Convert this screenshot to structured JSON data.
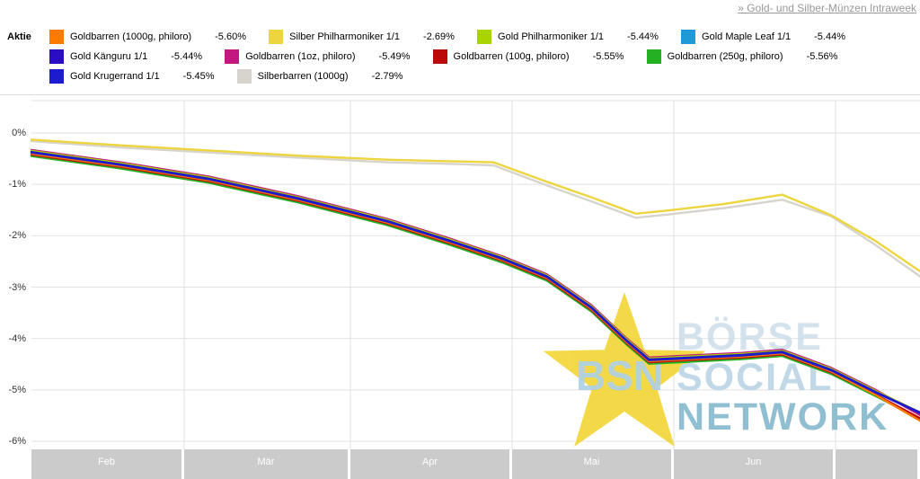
{
  "header": {
    "link_label": "» Gold- und Silber-Münzen Intraweek"
  },
  "legend": {
    "label": "Aktie",
    "row_sizes": [
      4,
      4,
      2
    ]
  },
  "watermark": {
    "bsn": "BSN",
    "words": [
      "BÖRSE",
      "SOCIAL",
      "NETWORK"
    ]
  },
  "chart_data": {
    "type": "line",
    "title": "Gold- und Silber-Münzen Intraweek",
    "xlabel": "",
    "ylabel": "",
    "ylim": [
      -6.5,
      0.6
    ],
    "grid": true,
    "legend_position": "top",
    "yticks": [
      "0%",
      "-1%",
      "-2%",
      "-3%",
      "-4%",
      "-5%",
      "-6%"
    ],
    "ytick_values": [
      0,
      -1,
      -2,
      -3,
      -4,
      -5,
      -6
    ],
    "x_axis_months": [
      "Feb",
      "Mär",
      "Apr",
      "Mai",
      "Jun"
    ],
    "draw_order": [
      9,
      1,
      7,
      6,
      0,
      5,
      3,
      2,
      4,
      8
    ],
    "series": [
      {
        "name": "Goldbarren (1000g, philoro)",
        "change": "-5.60%",
        "color": "#ff7a00",
        "points": [
          [
            0,
            -0.4
          ],
          [
            0.1,
            -0.64
          ],
          [
            0.2,
            -0.92
          ],
          [
            0.3,
            -1.3
          ],
          [
            0.4,
            -1.74
          ],
          [
            0.47,
            -2.12
          ],
          [
            0.53,
            -2.47
          ],
          [
            0.58,
            -2.82
          ],
          [
            0.63,
            -3.42
          ],
          [
            0.67,
            -4.07
          ],
          [
            0.695,
            -4.44
          ],
          [
            0.73,
            -4.41
          ],
          [
            0.8,
            -4.35
          ],
          [
            0.845,
            -4.29
          ],
          [
            0.9,
            -4.64
          ],
          [
            0.95,
            -5.1
          ],
          [
            1.0,
            -5.6
          ]
        ]
      },
      {
        "name": "Silber Philharmoniker 1/1",
        "change": "-2.69%",
        "color": "#ecd53e",
        "points": [
          [
            0,
            -0.13
          ],
          [
            0.1,
            -0.24
          ],
          [
            0.2,
            -0.34
          ],
          [
            0.3,
            -0.44
          ],
          [
            0.4,
            -0.52
          ],
          [
            0.47,
            -0.55
          ],
          [
            0.52,
            -0.57
          ],
          [
            0.58,
            -0.95
          ],
          [
            0.63,
            -1.25
          ],
          [
            0.68,
            -1.57
          ],
          [
            0.72,
            -1.5
          ],
          [
            0.78,
            -1.38
          ],
          [
            0.845,
            -1.2
          ],
          [
            0.9,
            -1.6
          ],
          [
            0.95,
            -2.1
          ],
          [
            1.0,
            -2.69
          ]
        ]
      },
      {
        "name": "Gold Philharmoniker 1/1",
        "change": "-5.44%",
        "color": "#a8d400",
        "points": [
          [
            0,
            -0.35
          ],
          [
            0.1,
            -0.59
          ],
          [
            0.2,
            -0.87
          ],
          [
            0.3,
            -1.25
          ],
          [
            0.4,
            -1.69
          ],
          [
            0.47,
            -2.07
          ],
          [
            0.53,
            -2.42
          ],
          [
            0.58,
            -2.77
          ],
          [
            0.63,
            -3.37
          ],
          [
            0.67,
            -4.02
          ],
          [
            0.695,
            -4.39
          ],
          [
            0.73,
            -4.36
          ],
          [
            0.8,
            -4.3
          ],
          [
            0.845,
            -4.24
          ],
          [
            0.9,
            -4.59
          ],
          [
            0.95,
            -5.02
          ],
          [
            1.0,
            -5.44
          ]
        ]
      },
      {
        "name": "Gold Maple Leaf 1/1",
        "change": "-5.44%",
        "color": "#1e9ad6",
        "points": [
          [
            0,
            -0.36
          ],
          [
            0.1,
            -0.6
          ],
          [
            0.2,
            -0.88
          ],
          [
            0.3,
            -1.26
          ],
          [
            0.4,
            -1.7
          ],
          [
            0.47,
            -2.08
          ],
          [
            0.53,
            -2.43
          ],
          [
            0.58,
            -2.78
          ],
          [
            0.63,
            -3.38
          ],
          [
            0.67,
            -4.03
          ],
          [
            0.695,
            -4.4
          ],
          [
            0.73,
            -4.37
          ],
          [
            0.8,
            -4.31
          ],
          [
            0.845,
            -4.25
          ],
          [
            0.9,
            -4.6
          ],
          [
            0.95,
            -5.03
          ],
          [
            1.0,
            -5.44
          ]
        ]
      },
      {
        "name": "Gold Känguru 1/1",
        "change": "-5.44%",
        "color": "#2a0cc4",
        "points": [
          [
            0,
            -0.37
          ],
          [
            0.1,
            -0.61
          ],
          [
            0.2,
            -0.89
          ],
          [
            0.3,
            -1.27
          ],
          [
            0.4,
            -1.71
          ],
          [
            0.47,
            -2.09
          ],
          [
            0.53,
            -2.44
          ],
          [
            0.58,
            -2.79
          ],
          [
            0.63,
            -3.39
          ],
          [
            0.67,
            -4.04
          ],
          [
            0.695,
            -4.41
          ],
          [
            0.73,
            -4.38
          ],
          [
            0.8,
            -4.32
          ],
          [
            0.845,
            -4.26
          ],
          [
            0.9,
            -4.61
          ],
          [
            0.95,
            -5.04
          ],
          [
            1.0,
            -5.44
          ]
        ]
      },
      {
        "name": "Goldbarren (1oz, philoro)",
        "change": "-5.49%",
        "color": "#c2187f",
        "points": [
          [
            0,
            -0.33
          ],
          [
            0.1,
            -0.57
          ],
          [
            0.2,
            -0.85
          ],
          [
            0.3,
            -1.23
          ],
          [
            0.4,
            -1.67
          ],
          [
            0.47,
            -2.05
          ],
          [
            0.53,
            -2.4
          ],
          [
            0.58,
            -2.75
          ],
          [
            0.63,
            -3.35
          ],
          [
            0.67,
            -4.0
          ],
          [
            0.695,
            -4.37
          ],
          [
            0.73,
            -4.34
          ],
          [
            0.8,
            -4.28
          ],
          [
            0.845,
            -4.22
          ],
          [
            0.9,
            -4.57
          ],
          [
            0.95,
            -5.0
          ],
          [
            1.0,
            -5.49
          ]
        ]
      },
      {
        "name": "Goldbarren (100g, philoro)",
        "change": "-5.55%",
        "color": "#bb0a0a",
        "points": [
          [
            0,
            -0.42
          ],
          [
            0.1,
            -0.66
          ],
          [
            0.2,
            -0.94
          ],
          [
            0.3,
            -1.32
          ],
          [
            0.4,
            -1.76
          ],
          [
            0.47,
            -2.14
          ],
          [
            0.53,
            -2.49
          ],
          [
            0.58,
            -2.84
          ],
          [
            0.63,
            -3.44
          ],
          [
            0.67,
            -4.09
          ],
          [
            0.695,
            -4.46
          ],
          [
            0.73,
            -4.43
          ],
          [
            0.8,
            -4.37
          ],
          [
            0.845,
            -4.31
          ],
          [
            0.9,
            -4.66
          ],
          [
            0.95,
            -5.09
          ],
          [
            1.0,
            -5.55
          ]
        ]
      },
      {
        "name": "Goldbarren (250g, philoro)",
        "change": "-5.56%",
        "color": "#23b123",
        "points": [
          [
            0,
            -0.45
          ],
          [
            0.1,
            -0.69
          ],
          [
            0.2,
            -0.97
          ],
          [
            0.3,
            -1.35
          ],
          [
            0.4,
            -1.79
          ],
          [
            0.47,
            -2.17
          ],
          [
            0.53,
            -2.52
          ],
          [
            0.58,
            -2.87
          ],
          [
            0.63,
            -3.47
          ],
          [
            0.67,
            -4.12
          ],
          [
            0.695,
            -4.49
          ],
          [
            0.73,
            -4.46
          ],
          [
            0.8,
            -4.4
          ],
          [
            0.845,
            -4.34
          ],
          [
            0.9,
            -4.69
          ],
          [
            0.95,
            -5.12
          ],
          [
            1.0,
            -5.56
          ]
        ]
      },
      {
        "name": "Gold Krugerrand 1/1",
        "change": "-5.45%",
        "color": "#1d1bd0",
        "points": [
          [
            0,
            -0.38
          ],
          [
            0.1,
            -0.62
          ],
          [
            0.2,
            -0.9
          ],
          [
            0.3,
            -1.28
          ],
          [
            0.4,
            -1.72
          ],
          [
            0.47,
            -2.1
          ],
          [
            0.53,
            -2.45
          ],
          [
            0.58,
            -2.8
          ],
          [
            0.63,
            -3.4
          ],
          [
            0.67,
            -4.05
          ],
          [
            0.695,
            -4.42
          ],
          [
            0.73,
            -4.39
          ],
          [
            0.8,
            -4.33
          ],
          [
            0.845,
            -4.27
          ],
          [
            0.9,
            -4.62
          ],
          [
            0.95,
            -5.05
          ],
          [
            1.0,
            -5.45
          ]
        ]
      },
      {
        "name": "Silberbarren (1000g)",
        "change": "-2.79%",
        "color": "#d6d4cc",
        "points": [
          [
            0,
            -0.16
          ],
          [
            0.1,
            -0.28
          ],
          [
            0.2,
            -0.38
          ],
          [
            0.3,
            -0.48
          ],
          [
            0.4,
            -0.57
          ],
          [
            0.47,
            -0.6
          ],
          [
            0.52,
            -0.63
          ],
          [
            0.58,
            -1.02
          ],
          [
            0.63,
            -1.33
          ],
          [
            0.68,
            -1.65
          ],
          [
            0.72,
            -1.58
          ],
          [
            0.78,
            -1.46
          ],
          [
            0.845,
            -1.3
          ],
          [
            0.9,
            -1.62
          ],
          [
            0.95,
            -2.18
          ],
          [
            1.0,
            -2.79
          ]
        ]
      }
    ]
  }
}
